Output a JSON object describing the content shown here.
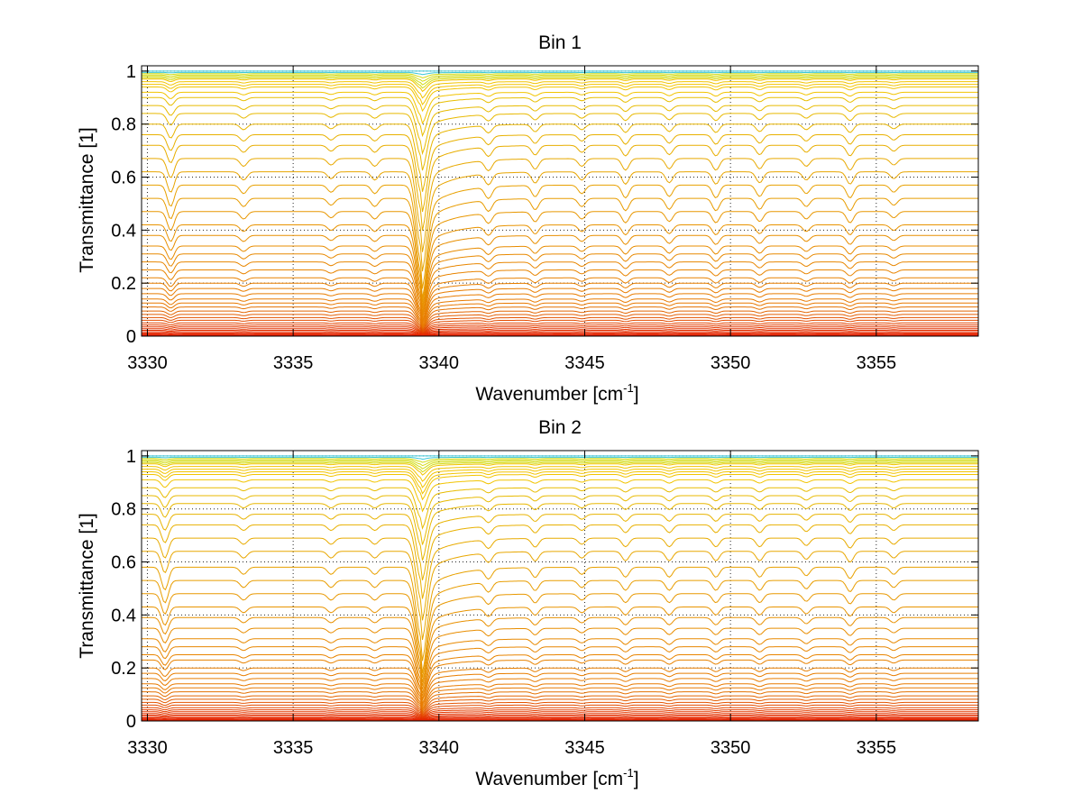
{
  "chart_data": [
    {
      "type": "line",
      "title": "Bin 1",
      "xlabel": "Wavenumber [cm",
      "xlabel_sup": "-1",
      "xlabel_suffix": "]",
      "ylabel": "Transmittance [1]",
      "xlim": [
        3329.8,
        3358.5
      ],
      "ylim": [
        0,
        1.02
      ],
      "xticks": [
        3330,
        3335,
        3340,
        3345,
        3350,
        3355
      ],
      "xtick_labels": [
        "3330",
        "3335",
        "3340",
        "3345",
        "3350",
        "3355"
      ],
      "yticks": [
        0,
        0.2,
        0.4,
        0.6,
        0.8,
        1
      ],
      "ytick_labels": [
        "0",
        "0.2",
        "0.4",
        "0.6",
        "0.8",
        "1"
      ],
      "grid": true,
      "series_baselines": [
        1.0,
        0.995,
        0.99,
        0.985,
        0.98,
        0.975,
        0.97,
        0.96,
        0.95,
        0.94,
        0.92,
        0.9,
        0.87,
        0.84,
        0.8,
        0.76,
        0.72,
        0.67,
        0.62,
        0.57,
        0.52,
        0.47,
        0.42,
        0.38,
        0.34,
        0.31,
        0.28,
        0.25,
        0.22,
        0.2,
        0.18,
        0.16,
        0.14,
        0.125,
        0.11,
        0.095,
        0.082,
        0.07,
        0.06,
        0.05,
        0.042,
        0.035,
        0.028,
        0.022,
        0.017,
        0.012,
        0.008,
        0.005,
        0.003,
        0.001
      ],
      "absorption_lines": [
        {
          "x": 3339.4,
          "depth": 0.55
        },
        {
          "x": 3330.8,
          "depth": 0.15
        },
        {
          "x": 3333.3,
          "depth": 0.06
        },
        {
          "x": 3336.3,
          "depth": 0.05
        },
        {
          "x": 3337.8,
          "depth": 0.06
        },
        {
          "x": 3341.7,
          "depth": 0.08
        },
        {
          "x": 3343.3,
          "depth": 0.08
        },
        {
          "x": 3344.9,
          "depth": 0.06
        },
        {
          "x": 3346.4,
          "depth": 0.09
        },
        {
          "x": 3347.9,
          "depth": 0.08
        },
        {
          "x": 3349.5,
          "depth": 0.09
        },
        {
          "x": 3351.0,
          "depth": 0.08
        },
        {
          "x": 3352.6,
          "depth": 0.06
        },
        {
          "x": 3354.1,
          "depth": 0.09
        },
        {
          "x": 3355.6,
          "depth": 0.05
        }
      ]
    },
    {
      "type": "line",
      "title": "Bin 2",
      "xlabel": "Wavenumber [cm",
      "xlabel_sup": "-1",
      "xlabel_suffix": "]",
      "ylabel": "Transmittance [1]",
      "xlim": [
        3329.8,
        3358.5
      ],
      "ylim": [
        0,
        1.02
      ],
      "xticks": [
        3330,
        3335,
        3340,
        3345,
        3350,
        3355
      ],
      "xtick_labels": [
        "3330",
        "3335",
        "3340",
        "3345",
        "3350",
        "3355"
      ],
      "yticks": [
        0,
        0.2,
        0.4,
        0.6,
        0.8,
        1
      ],
      "ytick_labels": [
        "0",
        "0.2",
        "0.4",
        "0.6",
        "0.8",
        "1"
      ],
      "grid": true,
      "series_baselines": [
        1.0,
        0.995,
        0.99,
        0.985,
        0.98,
        0.975,
        0.97,
        0.96,
        0.95,
        0.94,
        0.93,
        0.91,
        0.88,
        0.85,
        0.82,
        0.78,
        0.74,
        0.69,
        0.64,
        0.58,
        0.53,
        0.48,
        0.43,
        0.39,
        0.35,
        0.31,
        0.28,
        0.25,
        0.23,
        0.2,
        0.18,
        0.16,
        0.14,
        0.125,
        0.11,
        0.095,
        0.082,
        0.07,
        0.06,
        0.05,
        0.042,
        0.035,
        0.028,
        0.022,
        0.017,
        0.012,
        0.008,
        0.005,
        0.003,
        0.001
      ],
      "absorption_lines": [
        {
          "x": 3339.4,
          "depth": 0.5
        },
        {
          "x": 3330.6,
          "depth": 0.16
        },
        {
          "x": 3333.3,
          "depth": 0.05
        },
        {
          "x": 3336.3,
          "depth": 0.05
        },
        {
          "x": 3337.8,
          "depth": 0.05
        },
        {
          "x": 3341.7,
          "depth": 0.07
        },
        {
          "x": 3343.3,
          "depth": 0.07
        },
        {
          "x": 3344.9,
          "depth": 0.05
        },
        {
          "x": 3346.4,
          "depth": 0.07
        },
        {
          "x": 3347.9,
          "depth": 0.07
        },
        {
          "x": 3349.5,
          "depth": 0.07
        },
        {
          "x": 3351.0,
          "depth": 0.07
        },
        {
          "x": 3352.6,
          "depth": 0.06
        },
        {
          "x": 3354.1,
          "depth": 0.08
        },
        {
          "x": 3355.6,
          "depth": 0.05
        }
      ]
    }
  ]
}
